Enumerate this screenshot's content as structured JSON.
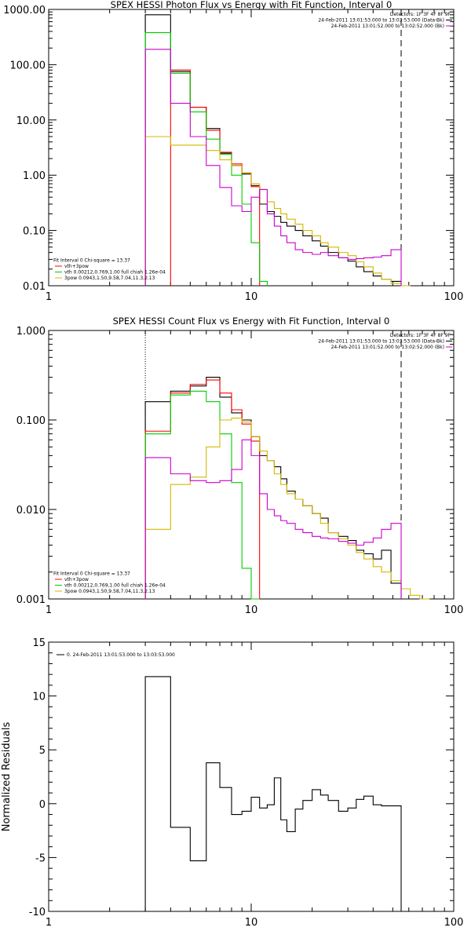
{
  "chart_data": [
    {
      "type": "line",
      "title": "SPEX HESSI Photon Flux vs Energy with Fit Function, Interval 0",
      "xlabel": "",
      "ylabel": "",
      "x_scale": "log",
      "y_scale": "log",
      "xlim": [
        1,
        100
      ],
      "ylim": [
        0.01,
        1000
      ],
      "x_ticks": [
        "1",
        "10",
        "100"
      ],
      "y_ticks": [
        "0.01",
        "0.10",
        "1.00",
        "10.00",
        "100.00",
        "1000.00"
      ],
      "legend_topright": [
        "Detectors: 1F 3F 4F 8F 9F",
        "24-Feb-2011 13:01:53.000 to 13:03:53.000 (Data-Bk)",
        "24-Feb-2011 13:01:52.000 to 13:02:52.000 (Bk)"
      ],
      "legend_bottomleft": [
        "Fit Interval 0   Chi-square = 13.37",
        "vth+3pow",
        "vth 0.00212,0.769,1.00   full chiah 1.26e-04",
        "3pow 0.0943,1.50,9.58,7.04,11.3,2.13"
      ],
      "vlines": [
        {
          "x": 3,
          "style": "dotted"
        },
        {
          "x": 55,
          "style": "dashed"
        }
      ],
      "edges": [
        3,
        4,
        5,
        6,
        7,
        8,
        9,
        10,
        11,
        12,
        13,
        14,
        15,
        16.5,
        18,
        20,
        22,
        24,
        27,
        30,
        33,
        36,
        40,
        44,
        49,
        55,
        61
      ],
      "series": [
        {
          "color": "#000000",
          "values": [
            800,
            75,
            17,
            7,
            2.5,
            1.5,
            1.05,
            0.65,
            0.3,
            0.22,
            0.18,
            0.14,
            0.12,
            0.1,
            0.08,
            0.065,
            0.052,
            0.04,
            0.032,
            0.028,
            0.022,
            0.018,
            0.015,
            0.013,
            0.012
          ]
        },
        {
          "color": "#ff0000",
          "values": [
            null,
            80,
            17,
            6.5,
            2.6,
            1.6,
            1.1,
            0.62,
            null,
            null,
            null,
            null,
            null,
            null,
            null,
            null,
            null,
            null,
            null,
            null,
            null,
            null,
            null,
            null,
            null
          ]
        },
        {
          "color": "#00cc00",
          "values": [
            380,
            70,
            14,
            4.5,
            2.4,
            1.0,
            0.3,
            0.06,
            0.012,
            null,
            null,
            null,
            null,
            null,
            null,
            null,
            null,
            null,
            null,
            null,
            null,
            null,
            null,
            null,
            null
          ]
        },
        {
          "color": "#d4b800",
          "values": [
            5,
            3.5,
            3.5,
            2.8,
            1.9,
            1.5,
            1.1,
            0.7,
            0.55,
            0.33,
            0.25,
            0.2,
            0.16,
            0.13,
            0.1,
            0.08,
            0.06,
            0.05,
            0.04,
            0.035,
            0.027,
            0.022,
            0.017,
            0.013,
            0.011,
            0.008
          ]
        },
        {
          "color": "#cc00cc",
          "values": [
            190,
            20,
            5,
            1.5,
            0.6,
            0.28,
            0.22,
            0.4,
            0.55,
            0.2,
            0.12,
            0.08,
            0.06,
            0.045,
            0.04,
            0.037,
            0.04,
            0.035,
            0.032,
            0.03,
            0.031,
            0.032,
            0.033,
            0.035,
            0.045
          ]
        }
      ]
    },
    {
      "type": "line",
      "title": "SPEX HESSI Count Flux vs Energy with Fit Function, Interval 0",
      "xlabel": "",
      "ylabel": "",
      "x_scale": "log",
      "y_scale": "log",
      "xlim": [
        1,
        100
      ],
      "ylim": [
        0.001,
        1
      ],
      "x_ticks": [
        "1",
        "10",
        "100"
      ],
      "y_ticks": [
        "0.001",
        "0.010",
        "0.100",
        "1.000"
      ],
      "legend_topright": [
        "Detectors: 1F 3F 4F 8F 9F",
        "24-Feb-2011 13:01:53.000 to 13:03:53.000 (Data-Bk)",
        "24-Feb-2011 13:01:52.000 to 13:02:52.000 (Bk)"
      ],
      "legend_bottomleft": [
        "Fit Interval 0   Chi-square = 13.37",
        "vth+3pow",
        "vth 0.00212,0.769,1.00   full chiah 1.26e-04",
        "3pow 0.0943,1.50,9.58,7.04,11.3,2.13"
      ],
      "vlines": [
        {
          "x": 3,
          "style": "dotted"
        },
        {
          "x": 55,
          "style": "dashed"
        }
      ],
      "edges": [
        3,
        4,
        5,
        6,
        7,
        8,
        9,
        10,
        11,
        12,
        13,
        14,
        15,
        16.5,
        18,
        20,
        22,
        24,
        27,
        30,
        33,
        36,
        40,
        44,
        49,
        55,
        61,
        68,
        76,
        85
      ],
      "series": [
        {
          "color": "#000000",
          "values": [
            0.16,
            0.21,
            0.24,
            0.3,
            0.18,
            0.12,
            0.1,
            0.065,
            0.04,
            0.035,
            0.03,
            0.022,
            0.016,
            0.013,
            0.011,
            0.009,
            0.008,
            0.0055,
            0.005,
            0.0045,
            0.0035,
            0.0032,
            0.0028,
            0.0035,
            0.0015,
            null,
            null,
            null,
            null
          ]
        },
        {
          "color": "#ff0000",
          "values": [
            0.075,
            0.2,
            0.25,
            0.28,
            0.2,
            0.13,
            0.09,
            0.058,
            null,
            null,
            null,
            null,
            null,
            null,
            null,
            null,
            null,
            null,
            null,
            null,
            null,
            null,
            null,
            null,
            null,
            null,
            null,
            null,
            null
          ]
        },
        {
          "color": "#00cc00",
          "values": [
            0.07,
            0.19,
            0.21,
            0.16,
            0.07,
            0.02,
            0.0022,
            0.001,
            null,
            null,
            null,
            null,
            null,
            null,
            null,
            null,
            null,
            null,
            null,
            null,
            null,
            null,
            null,
            null,
            null,
            null,
            null,
            null,
            null
          ]
        },
        {
          "color": "#d4b800",
          "values": [
            0.006,
            0.019,
            0.023,
            0.05,
            0.1,
            0.105,
            0.095,
            0.065,
            0.045,
            0.035,
            0.025,
            0.019,
            0.015,
            0.013,
            0.011,
            0.009,
            0.007,
            0.0055,
            0.0047,
            0.004,
            0.0033,
            0.0028,
            0.0023,
            0.002,
            0.0016,
            0.0013,
            0.0011,
            0.001,
            null
          ]
        },
        {
          "color": "#cc00cc",
          "values": [
            0.038,
            0.025,
            0.021,
            0.02,
            0.021,
            0.028,
            0.06,
            0.04,
            0.015,
            0.01,
            0.0085,
            0.0075,
            0.007,
            0.006,
            0.0055,
            0.005,
            0.0048,
            0.0047,
            0.0044,
            0.0042,
            0.004,
            0.0043,
            0.0048,
            0.006,
            0.007,
            null,
            null,
            null,
            null
          ]
        }
      ]
    },
    {
      "type": "line",
      "title": "",
      "xlabel": "",
      "ylabel": "Normalized Residuals",
      "x_scale": "log",
      "y_scale": "linear",
      "xlim": [
        1,
        100
      ],
      "ylim": [
        -10,
        15
      ],
      "x_ticks": [
        "1",
        "10",
        "100"
      ],
      "y_ticks": [
        "-10",
        "-5",
        "0",
        "5",
        "10",
        "15"
      ],
      "legend_topleft": [
        "0. 24-Feb-2011 13:01:53.000 to 13:03:53.000"
      ],
      "edges": [
        3,
        4,
        5,
        6,
        7,
        8,
        9,
        10,
        11,
        12,
        13,
        14,
        15,
        16.5,
        18,
        20,
        22,
        24,
        27,
        30,
        33,
        36,
        40,
        44,
        49,
        55
      ],
      "series": [
        {
          "color": "#000000",
          "values": [
            11.8,
            -2.2,
            -5.3,
            3.8,
            1.5,
            -1.0,
            -0.7,
            0.6,
            -0.4,
            -0.1,
            2.4,
            -1.5,
            -2.6,
            -0.5,
            0.3,
            1.3,
            0.8,
            0.3,
            -0.7,
            -0.4,
            0.4,
            0.7,
            -0.1,
            -0.2,
            -0.2
          ]
        }
      ]
    }
  ]
}
